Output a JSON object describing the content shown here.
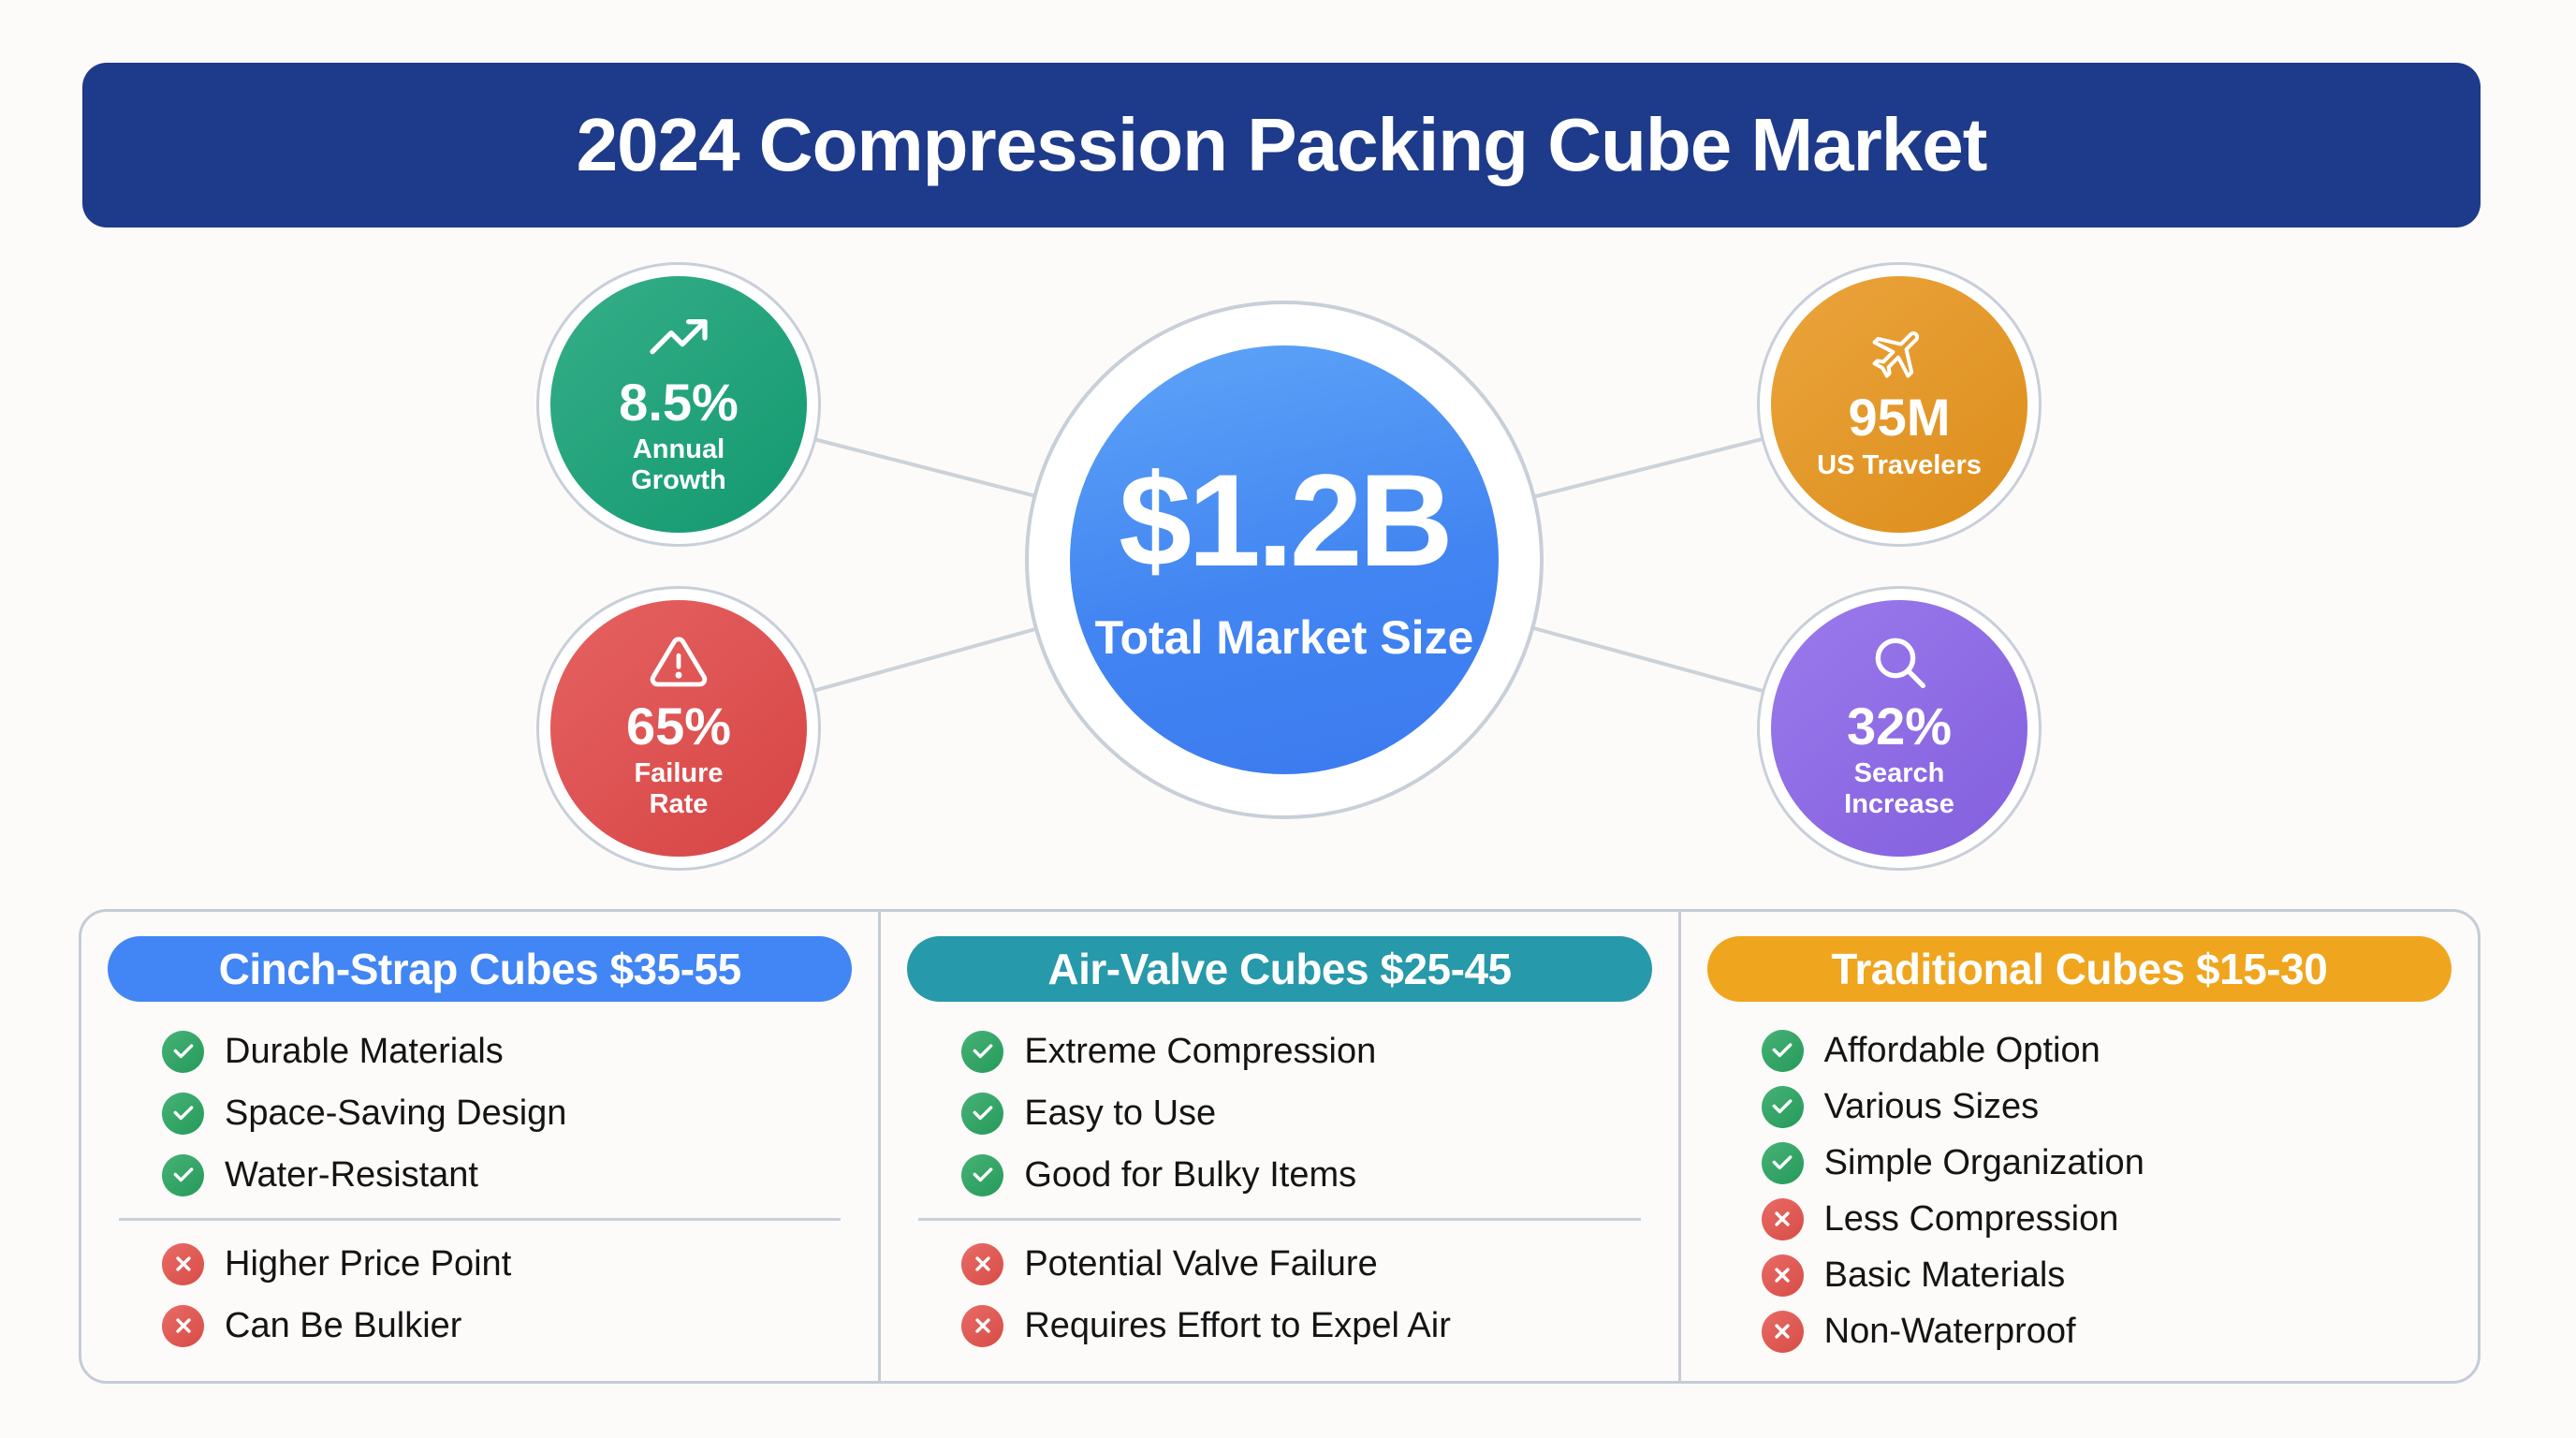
{
  "title": "2024 Compression Packing Cube Market",
  "hub": {
    "center": {
      "value": "$1.2B",
      "label": "Total Market Size"
    },
    "stats": [
      {
        "icon": "trending-up-icon",
        "value": "8.5%",
        "label": "Annual\nGrowth",
        "color": "#14a175"
      },
      {
        "icon": "warning-icon",
        "value": "65%",
        "label": "Failure\nRate",
        "color": "#e24848"
      },
      {
        "icon": "airplane-icon",
        "value": "95M",
        "label": "US Travelers",
        "color": "#e8951c"
      },
      {
        "icon": "search-icon",
        "value": "32%",
        "label": "Search\nIncrease",
        "color": "#8a64e9"
      }
    ]
  },
  "cards": [
    {
      "header": "Cinch-Strap Cubes $35-55",
      "color": "#4285f4",
      "pros": [
        "Durable Materials",
        "Space-Saving Design",
        "Water-Resistant"
      ],
      "cons": [
        "Higher Price Point",
        "Can Be Bulkier"
      ],
      "show_divider": true
    },
    {
      "header": "Air-Valve Cubes $25-45",
      "color": "#2699aa",
      "pros": [
        "Extreme Compression",
        "Easy to Use",
        "Good for Bulky Items"
      ],
      "cons": [
        "Potential Valve Failure",
        "Requires Effort to Expel Air"
      ],
      "show_divider": true
    },
    {
      "header": "Traditional Cubes $15-30",
      "color": "#efa51e",
      "pros": [
        "Affordable Option",
        "Various Sizes",
        "Simple Organization"
      ],
      "cons": [
        "Less Compression",
        "Basic Materials",
        "Non-Waterproof"
      ],
      "show_divider": false
    }
  ],
  "colors": {
    "banner_bg": "#1e3a8a",
    "center_gradient_start": "#5ea4f7",
    "center_gradient_end": "#3b7af0",
    "pro_check": "#27a45f",
    "con_x": "#e5514b",
    "card_border": "#c5ccd7",
    "connector_line": "#ccd2da",
    "text": "#141414"
  }
}
